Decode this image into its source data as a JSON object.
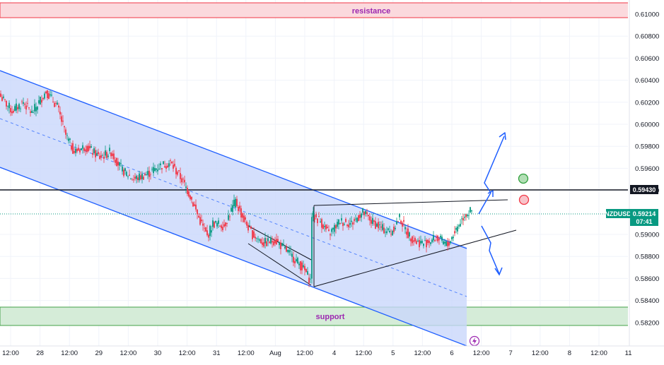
{
  "chart_data": {
    "type": "candlestick",
    "symbol": "NZDUSD",
    "title": "",
    "xlabel": "",
    "ylabel": "",
    "ylim": [
      0.581,
      0.6115
    ],
    "x_ticks": [
      "12:00",
      "28",
      "12:00",
      "29",
      "12:00",
      "30",
      "12:00",
      "31",
      "12:00",
      "Aug",
      "12:00",
      "4",
      "12:00",
      "5",
      "12:00",
      "6",
      "12:00",
      "7",
      "12:00",
      "8",
      "12:00",
      "11"
    ],
    "y_ticks": [
      "0.61000",
      "0.60800",
      "0.60600",
      "0.60400",
      "0.60200",
      "0.60000",
      "0.59800",
      "0.59600",
      "0.59400",
      "0.59000",
      "0.58800",
      "0.58600",
      "0.58400",
      "0.58200"
    ],
    "price_series": [
      {
        "i": 0,
        "v": 0.6025
      },
      {
        "i": 8,
        "v": 0.6012
      },
      {
        "i": 16,
        "v": 0.602
      },
      {
        "i": 22,
        "v": 0.601
      },
      {
        "i": 32,
        "v": 0.603
      },
      {
        "i": 40,
        "v": 0.6016
      },
      {
        "i": 46,
        "v": 0.599
      },
      {
        "i": 52,
        "v": 0.5975
      },
      {
        "i": 60,
        "v": 0.598
      },
      {
        "i": 70,
        "v": 0.597
      },
      {
        "i": 78,
        "v": 0.5975
      },
      {
        "i": 86,
        "v": 0.5958
      },
      {
        "i": 94,
        "v": 0.595
      },
      {
        "i": 104,
        "v": 0.5955
      },
      {
        "i": 112,
        "v": 0.5962
      },
      {
        "i": 120,
        "v": 0.5965
      },
      {
        "i": 128,
        "v": 0.595
      },
      {
        "i": 134,
        "v": 0.5935
      },
      {
        "i": 140,
        "v": 0.5915
      },
      {
        "i": 146,
        "v": 0.5898
      },
      {
        "i": 150,
        "v": 0.591
      },
      {
        "i": 158,
        "v": 0.5908
      },
      {
        "i": 166,
        "v": 0.593
      },
      {
        "i": 172,
        "v": 0.5913
      },
      {
        "i": 178,
        "v": 0.59
      },
      {
        "i": 186,
        "v": 0.5892
      },
      {
        "i": 194,
        "v": 0.5895
      },
      {
        "i": 202,
        "v": 0.5885
      },
      {
        "i": 210,
        "v": 0.5875
      },
      {
        "i": 216,
        "v": 0.5865
      },
      {
        "i": 219,
        "v": 0.5858
      },
      {
        "i": 220,
        "v": 0.5918
      },
      {
        "i": 226,
        "v": 0.5912
      },
      {
        "i": 232,
        "v": 0.59
      },
      {
        "i": 240,
        "v": 0.5912
      },
      {
        "i": 248,
        "v": 0.591
      },
      {
        "i": 256,
        "v": 0.592
      },
      {
        "i": 262,
        "v": 0.5912
      },
      {
        "i": 270,
        "v": 0.5905
      },
      {
        "i": 276,
        "v": 0.5902
      },
      {
        "i": 282,
        "v": 0.5915
      },
      {
        "i": 288,
        "v": 0.59
      },
      {
        "i": 294,
        "v": 0.5893
      },
      {
        "i": 300,
        "v": 0.5892
      },
      {
        "i": 308,
        "v": 0.5897
      },
      {
        "i": 316,
        "v": 0.589
      },
      {
        "i": 322,
        "v": 0.5905
      },
      {
        "i": 328,
        "v": 0.5918
      },
      {
        "i": 333,
        "v": 0.5921
      }
    ],
    "levels": {
      "resistance": {
        "label": "resistance",
        "low": 0.6097,
        "high": 0.6112
      },
      "support": {
        "label": "support",
        "low": 0.5822,
        "high": 0.5839
      },
      "horizontal_line": 0.5943
    },
    "price_tags": [
      {
        "name": "level",
        "label": "",
        "value": "0.59430",
        "color": "#131722"
      },
      {
        "name": "current",
        "label": "NZDUSD",
        "value": "0.59214",
        "countdown": "07:41",
        "color": "#089981"
      }
    ],
    "colors": {
      "up": "#089981",
      "down": "#f23645",
      "channel": "#1e5eff",
      "channel_fill": "#c9d7fb",
      "resistance_fill": "#fbd9dd",
      "resistance_border": "#f23645",
      "support_fill": "#d5ecd8",
      "support_border": "#43a047",
      "annotation": "#9c27b0",
      "grid": "#f0f3fa",
      "current_dotted": "#089981"
    },
    "icons": [
      "green-circle-icon",
      "red-circle-icon",
      "lightning-icon",
      "arrow-up-icon",
      "arrow-down-icon"
    ]
  }
}
